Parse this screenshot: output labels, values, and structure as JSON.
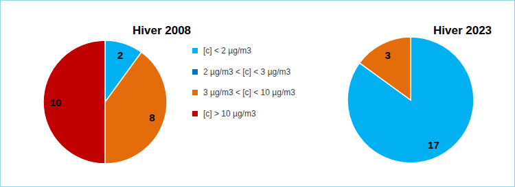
{
  "chart_data": [
    {
      "type": "pie",
      "title": "Hiver 2008",
      "categories": [
        "[c] < 2 µg/m3",
        "2 µg/m3 < [c] < 3 µg/m3",
        "3 µg/m3 < [c] < 10 µg/m3",
        "[c] > 10 µg/m3"
      ],
      "values": [
        2,
        0,
        8,
        10
      ],
      "colors": [
        "#00b0f0",
        "#0070c0",
        "#e46c0a",
        "#c00000"
      ],
      "data_labels": true,
      "legend": "right"
    },
    {
      "type": "pie",
      "title": "Hiver 2023",
      "categories": [
        "[c] < 2 µg/m3",
        "2 µg/m3 < [c] < 3 µg/m3",
        "3 µg/m3 < [c] < 10 µg/m3",
        "[c] > 10 µg/m3"
      ],
      "values": [
        17,
        0,
        3,
        0
      ],
      "colors": [
        "#00b0f0",
        "#0070c0",
        "#e46c0a",
        "#c00000"
      ],
      "data_labels": true
    }
  ]
}
